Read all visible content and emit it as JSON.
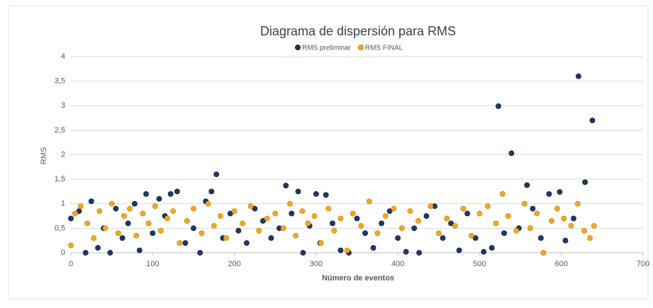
{
  "chart_data": {
    "type": "scatter",
    "title": "Diagrama de dispersión para RMS",
    "xlabel": "Número de eventos",
    "ylabel": "RMS",
    "xlim": [
      0,
      700
    ],
    "xticks": [
      0,
      100,
      200,
      300,
      400,
      500,
      600,
      700
    ],
    "ylim": [
      0,
      4
    ],
    "yticks": [
      0,
      {
        "value": 0.5,
        "label": "0,5"
      },
      1,
      {
        "value": 1.5,
        "label": "1,5"
      },
      2,
      {
        "value": 2.5,
        "label": "2,5"
      },
      3,
      {
        "value": 3.5,
        "label": "3,5"
      },
      4
    ],
    "grid": true,
    "legend": "top",
    "series": [
      {
        "name": "RMS preliminar",
        "color": "#203864",
        "x": [
          0,
          10,
          18,
          25,
          33,
          40,
          48,
          55,
          63,
          70,
          78,
          84,
          92,
          100,
          108,
          115,
          122,
          130,
          140,
          150,
          158,
          165,
          172,
          178,
          186,
          195,
          205,
          215,
          225,
          235,
          245,
          255,
          263,
          270,
          278,
          284,
          292,
          300,
          305,
          312,
          320,
          330,
          340,
          350,
          360,
          370,
          380,
          390,
          400,
          410,
          420,
          426,
          435,
          445,
          455,
          465,
          475,
          485,
          495,
          505,
          515,
          523,
          530,
          539,
          548,
          558,
          565,
          575,
          585,
          598,
          605,
          615,
          621,
          629,
          638
        ],
        "values": [
          0.7,
          0.85,
          0,
          1.05,
          0.1,
          0.5,
          0,
          0.9,
          0.3,
          0.6,
          1.0,
          0.05,
          1.2,
          0.4,
          1.1,
          0.75,
          1.2,
          1.25,
          0.2,
          0.5,
          0,
          1.05,
          1.25,
          1.6,
          0.3,
          0.8,
          0.45,
          0.2,
          0.9,
          0.65,
          0.3,
          0.5,
          1.37,
          0.8,
          1.25,
          0,
          0.55,
          1.2,
          0.2,
          1.18,
          0.6,
          0.05,
          0,
          0.7,
          0.4,
          0.1,
          0.6,
          0.85,
          0.3,
          0.02,
          0.5,
          0.0,
          0.75,
          0.95,
          0.3,
          0.6,
          0.05,
          0.8,
          0.3,
          0.02,
          0.1,
          2.99,
          0.4,
          2.03,
          0.5,
          1.38,
          0.9,
          0.3,
          1.2,
          1.24,
          0.25,
          0.7,
          3.6,
          1.44,
          2.7
        ]
      },
      {
        "name": "RMS FINAL",
        "color": "#f5a623",
        "x": [
          0,
          5,
          12,
          20,
          28,
          35,
          42,
          50,
          58,
          65,
          72,
          80,
          88,
          95,
          103,
          110,
          118,
          125,
          133,
          142,
          150,
          160,
          168,
          175,
          183,
          190,
          200,
          210,
          220,
          230,
          240,
          250,
          260,
          268,
          275,
          283,
          290,
          298,
          306,
          315,
          322,
          330,
          338,
          345,
          355,
          365,
          375,
          385,
          395,
          405,
          415,
          425,
          440,
          450,
          460,
          470,
          480,
          490,
          500,
          510,
          520,
          528,
          535,
          545,
          555,
          562,
          570,
          578,
          588,
          595,
          603,
          612,
          620,
          628,
          635,
          640
        ],
        "values": [
          0.15,
          0.8,
          0.95,
          0.6,
          0.3,
          0.85,
          0.5,
          1.0,
          0.4,
          0.75,
          0.9,
          0.35,
          0.8,
          0.6,
          0.95,
          0.45,
          0.7,
          0.85,
          0.2,
          0.65,
          0.9,
          0.4,
          1.0,
          0.55,
          0.75,
          0.3,
          0.85,
          0.6,
          0.95,
          0.45,
          0.7,
          0.8,
          0.5,
          1.0,
          0.35,
          0.85,
          0.6,
          0.75,
          0.2,
          0.9,
          0.45,
          0.7,
          0.05,
          0.8,
          0.55,
          1.05,
          0.4,
          0.75,
          0.9,
          0.5,
          0.85,
          0.65,
          0.95,
          0.4,
          0.7,
          0.55,
          0.9,
          0.35,
          0.8,
          0.95,
          0.6,
          1.2,
          0.75,
          0.45,
          1.0,
          0.5,
          0.8,
          0.0,
          0.65,
          0.9,
          0.7,
          0.55,
          1.0,
          0.45,
          0.3,
          0.55
        ]
      }
    ]
  }
}
